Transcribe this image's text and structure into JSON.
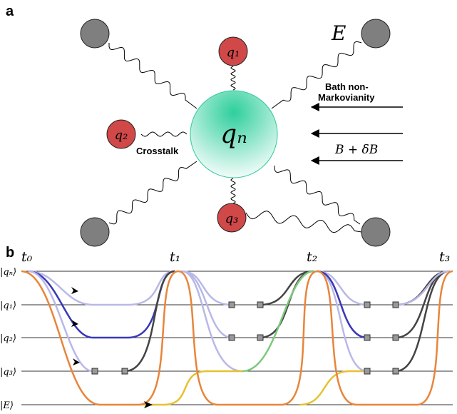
{
  "panel_a": {
    "label": "a",
    "center": "qₙ",
    "qubits": [
      "q₁",
      "q₂",
      "q₃"
    ],
    "crosstalk": "Crosstalk",
    "bath": [
      "Bath non-",
      "Markovianity"
    ],
    "field": "B + δB",
    "environment": "E"
  },
  "panel_b": {
    "label": "b",
    "times": [
      "t₀",
      "t₁",
      "t₂",
      "t₃"
    ],
    "levels": [
      "|qₙ⟩",
      "|q₁⟩",
      "|q₂⟩",
      "|q₃⟩",
      "|E⟩"
    ]
  }
}
